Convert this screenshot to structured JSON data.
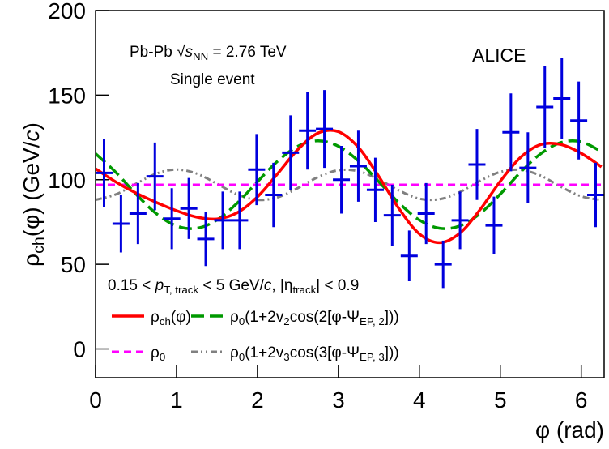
{
  "chart_data": {
    "type": "line",
    "xlim": [
      0,
      6.283
    ],
    "ylim": [
      -17,
      200
    ],
    "xticks": [
      0,
      1,
      2,
      3,
      4,
      5,
      6
    ],
    "yticks": [
      0,
      50,
      100,
      150,
      200
    ],
    "xlabel": [
      {
        "t": "φ (rad)"
      }
    ],
    "ylabel": [
      {
        "t": "ρ"
      },
      {
        "t": "ch",
        "sub": true
      },
      {
        "t": "(φ) (GeV/"
      },
      {
        "t": "c",
        "italic": true
      },
      {
        "t": ")"
      }
    ],
    "annotations": [
      [
        {
          "t": "Pb-Pb "
        },
        {
          "t": "√"
        },
        {
          "t": "s",
          "italic": true
        },
        {
          "t": "NN",
          "sub": true
        },
        {
          "t": " = 2.76 TeV"
        }
      ],
      [
        {
          "t": "Single event"
        }
      ],
      [
        {
          "t": "ALICE"
        }
      ],
      [
        {
          "t": "0.15 < "
        },
        {
          "t": "p",
          "italic": true
        },
        {
          "t": "T, track",
          "sub": true
        },
        {
          "t": " < 5 GeV/"
        },
        {
          "t": "c",
          "italic": true
        },
        {
          "t": ", |η"
        },
        {
          "t": "track",
          "sub": true
        },
        {
          "t": "| < 0.9"
        }
      ]
    ],
    "series": [
      {
        "name": [
          {
            "t": "ρ"
          },
          {
            "t": "ch",
            "sub": true
          },
          {
            "t": "(φ)"
          }
        ],
        "color": "#ff0000",
        "dash": "solid",
        "x": [
          0,
          0.25,
          0.5,
          0.75,
          1,
          1.25,
          1.5,
          1.75,
          2,
          2.25,
          2.5,
          2.75,
          3,
          3.25,
          3.5,
          3.75,
          4,
          4.25,
          4.5,
          4.75,
          5,
          5.25,
          5.5,
          5.75,
          6,
          6.25
        ],
        "values": [
          106.5,
          98.7,
          92.1,
          86.6,
          81.7,
          77.9,
          76.8,
          80.5,
          89.9,
          103.6,
          117.9,
          127.6,
          128.4,
          119,
          101.9,
          82.8,
          68,
          62.8,
          68.4,
          82.3,
          99.1,
          113.2,
          120.8,
          120.8,
          115.6,
          107.6
        ]
      },
      {
        "name": [
          {
            "t": "ρ"
          },
          {
            "t": "0",
            "sub": true
          },
          {
            "t": "(1+2v"
          },
          {
            "t": "2",
            "sub": true
          },
          {
            "t": "cos(2[φ-Ψ"
          },
          {
            "t": "EP, 2",
            "sub": true
          },
          {
            "t": "]))"
          }
        ],
        "color": "#009900",
        "dash": "dashed",
        "x": [
          0,
          0.25,
          0.5,
          0.75,
          1,
          1.25,
          1.5,
          1.75,
          2,
          2.25,
          2.5,
          2.75,
          3,
          3.25,
          3.5,
          3.75,
          4,
          4.25,
          4.5,
          4.75,
          5,
          5.25,
          5.5,
          5.75,
          6,
          6.25
        ],
        "values": [
          115.4,
          104.4,
          91.5,
          80,
          72.7,
          71.3,
          76.2,
          86.2,
          98.8,
          111,
          119.8,
          123,
          119.8,
          111,
          98.8,
          86.2,
          76.2,
          71.3,
          72.7,
          80,
          91.5,
          104.4,
          115.4,
          122,
          122.4,
          116.6
        ]
      },
      {
        "name": [
          {
            "t": "ρ"
          },
          {
            "t": "0",
            "sub": true
          }
        ],
        "color": "#ff00ff",
        "dash": "short",
        "x": [
          0,
          6.283
        ],
        "values": [
          97,
          97
        ]
      },
      {
        "name": [
          {
            "t": "ρ"
          },
          {
            "t": "0",
            "sub": true
          },
          {
            "t": "(1+2v"
          },
          {
            "t": "3",
            "sub": true
          },
          {
            "t": "cos(3[φ-Ψ"
          },
          {
            "t": "EP, 3",
            "sub": true
          },
          {
            "t": "]))"
          }
        ],
        "color": "#808080",
        "dash": "dashdotdot",
        "x": [
          0,
          0.25,
          0.5,
          0.75,
          1,
          1.25,
          1.5,
          1.75,
          2,
          2.25,
          2.5,
          2.75,
          3,
          3.25,
          3.5,
          3.75,
          4,
          4.25,
          4.5,
          4.75,
          5,
          5.25,
          5.5,
          5.75,
          6,
          6.25
        ],
        "values": [
          88.1,
          91.3,
          97.6,
          103.6,
          106,
          103.6,
          97.6,
          91.3,
          88.1,
          89.6,
          95.1,
          101.6,
          105.6,
          105,
          100.1,
          93.6,
          88.8,
          88.5,
          92.7,
          99.3,
          104.6,
          105.8,
          102.4,
          95.8,
          90.2,
          88
        ]
      }
    ],
    "points": {
      "color": "#0000dd",
      "xerr": 0.105,
      "x": [
        0.105,
        0.314,
        0.524,
        0.733,
        0.942,
        1.152,
        1.361,
        1.571,
        1.78,
        1.99,
        2.199,
        2.409,
        2.618,
        2.827,
        3.037,
        3.246,
        3.456,
        3.665,
        3.875,
        4.084,
        4.294,
        4.503,
        4.712,
        4.922,
        5.131,
        5.341,
        5.55,
        5.76,
        5.969,
        6.178
      ],
      "values": [
        104,
        74,
        80,
        102,
        77,
        83,
        65,
        76,
        76,
        106,
        91,
        116,
        129,
        130,
        100,
        108,
        94,
        79,
        55,
        80,
        50,
        76,
        109,
        73,
        128,
        107,
        143,
        148,
        135,
        91
      ],
      "errors": [
        20,
        17,
        18,
        20,
        18,
        18,
        16,
        17,
        17,
        21,
        19,
        22,
        23,
        23,
        20,
        21,
        19,
        18,
        15,
        18,
        14,
        17,
        21,
        17,
        23,
        21,
        24,
        24,
        23,
        19
      ]
    }
  }
}
